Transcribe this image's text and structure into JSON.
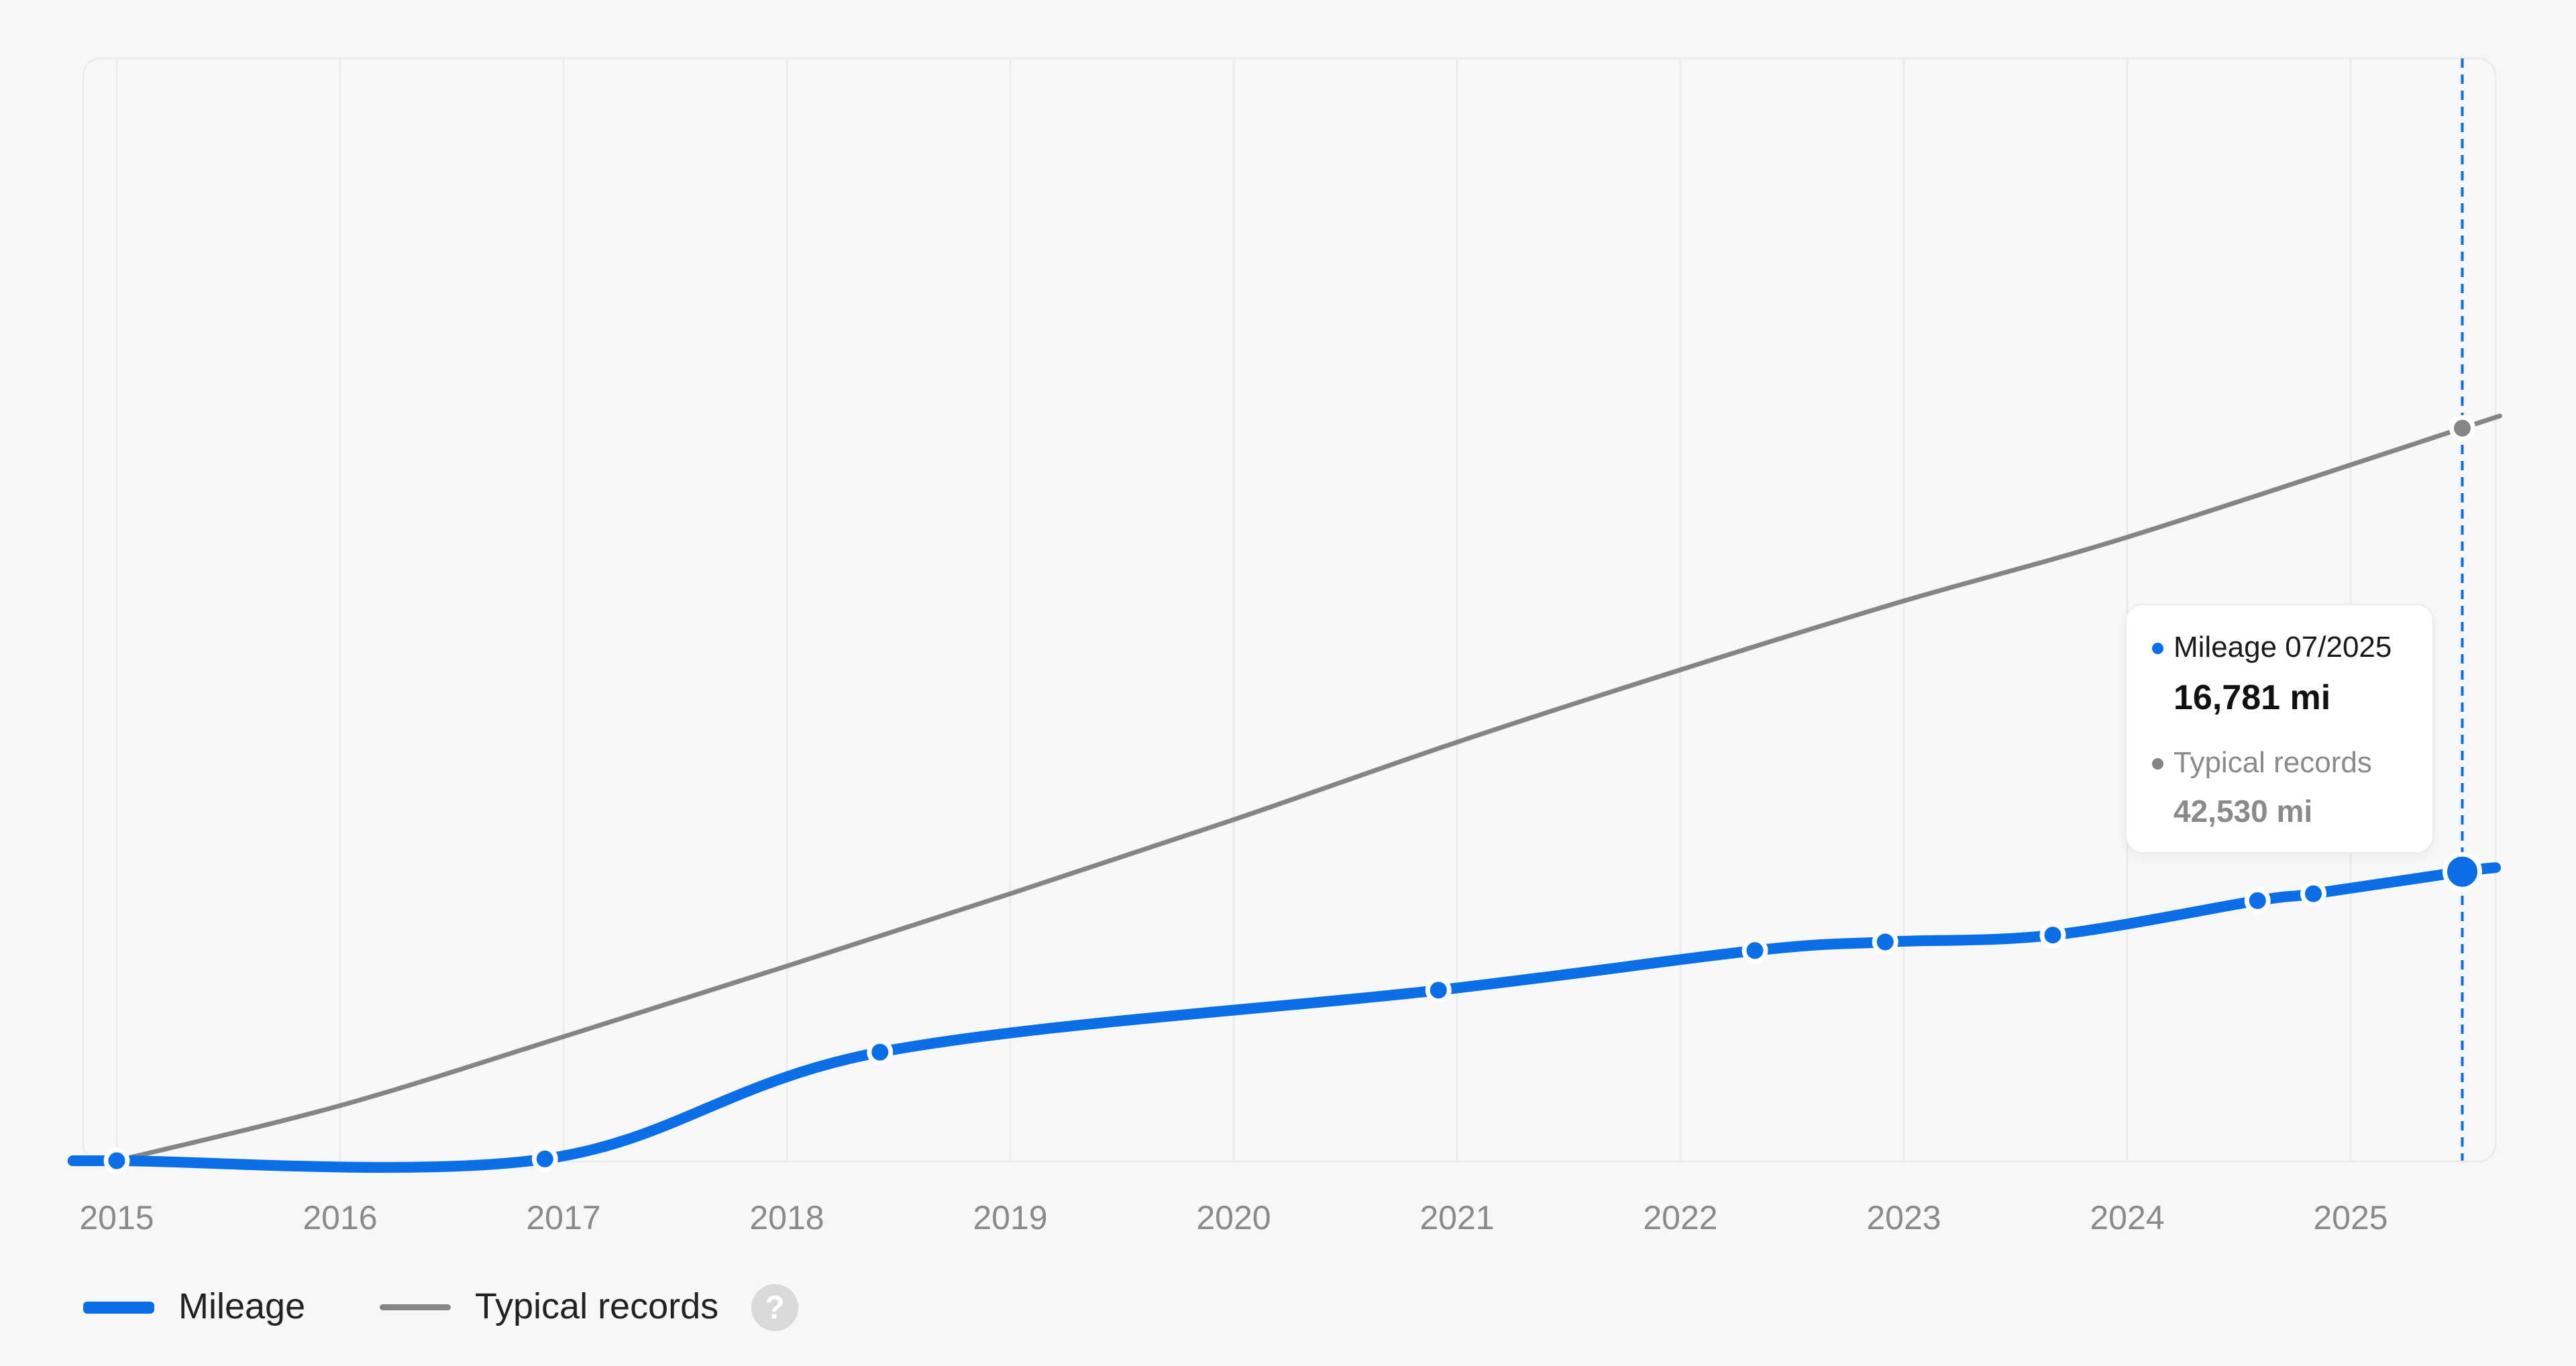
{
  "colors": {
    "mileage": "#0a6ee6",
    "typical": "#858585",
    "grid": "#e9ebf2",
    "plot_background": "#f8f8f9",
    "help_icon": "#d9d9db"
  },
  "chart_data": {
    "type": "line",
    "title": "",
    "xlabel": "",
    "ylabel": "",
    "x_ticks": [
      "2015",
      "2016",
      "2017",
      "2018",
      "2019",
      "2020",
      "2021",
      "2022",
      "2023",
      "2024",
      "2025"
    ],
    "grid": "vertical",
    "y_axis_labels_shown": false,
    "ylim_mi": [
      0,
      64000
    ],
    "series": [
      {
        "name": "Mileage",
        "line_style": "thick smooth",
        "points": [
          {
            "date": "2015-01",
            "mi": 0
          },
          {
            "date": "2016-12",
            "mi": 100
          },
          {
            "date": "2018-06",
            "mi": 6300
          },
          {
            "date": "2020-12",
            "mi": 9900
          },
          {
            "date": "2022-05",
            "mi": 12200
          },
          {
            "date": "2022-12",
            "mi": 12700
          },
          {
            "date": "2023-09",
            "mi": 13100
          },
          {
            "date": "2024-08",
            "mi": 15100
          },
          {
            "date": "2024-11",
            "mi": 15500
          },
          {
            "date": "2025-07",
            "mi": 16781
          }
        ]
      },
      {
        "name": "Typical records",
        "line_style": "thin",
        "points": [
          {
            "date": "2015-01",
            "mi": 0
          },
          {
            "date": "2016-01",
            "mi": 3200
          },
          {
            "date": "2017-01",
            "mi": 7200
          },
          {
            "date": "2018-01",
            "mi": 11300
          },
          {
            "date": "2019-01",
            "mi": 15500
          },
          {
            "date": "2020-01",
            "mi": 19800
          },
          {
            "date": "2021-01",
            "mi": 24300
          },
          {
            "date": "2022-01",
            "mi": 28500
          },
          {
            "date": "2023-01",
            "mi": 32500
          },
          {
            "date": "2024-01",
            "mi": 36200
          },
          {
            "date": "2025-07",
            "mi": 42530
          }
        ]
      }
    ],
    "highlight": {
      "date": "2025-07",
      "marker": "dashed vertical line"
    }
  },
  "tooltip": {
    "mileage_label": "Mileage 07/2025",
    "mileage_value": "16,781 mi",
    "typical_label": "Typical records",
    "typical_value": "42,530 mi"
  },
  "legend": {
    "mileage_label": "Mileage",
    "typical_label": "Typical records",
    "help_icon": "question-mark-icon",
    "help_glyph": "?",
    "placement": "bottom-left"
  }
}
